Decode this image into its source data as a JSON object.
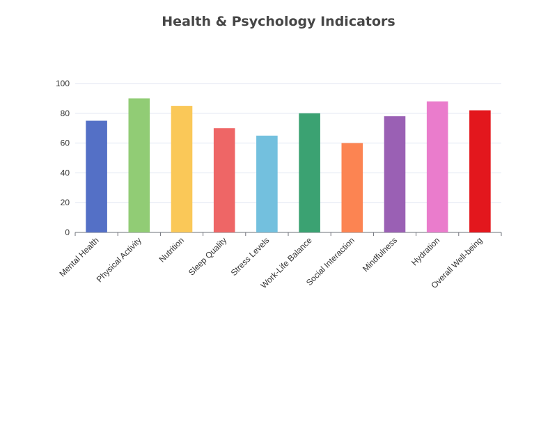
{
  "chart_data": {
    "type": "bar",
    "title": "Health & Psychology Indicators",
    "xlabel": "",
    "ylabel": "",
    "categories": [
      "Mental Health",
      "Physical Activity",
      "Nutrition",
      "Sleep Quality",
      "Stress Levels",
      "Work-Life Balance",
      "Social Interaction",
      "Mindfulness",
      "Hydration",
      "Overall Well-being"
    ],
    "values": [
      75,
      90,
      85,
      70,
      65,
      80,
      60,
      78,
      88,
      82
    ],
    "colors": [
      "#5470c6",
      "#91cc75",
      "#fac858",
      "#ee6666",
      "#73c0de",
      "#3ba272",
      "#fc8452",
      "#9a60b4",
      "#ea7ccc",
      "#e3171d"
    ],
    "ylim": [
      0,
      100
    ],
    "yticks": [
      0,
      20,
      40,
      60,
      80,
      100
    ],
    "grid": true,
    "legend": "none"
  }
}
